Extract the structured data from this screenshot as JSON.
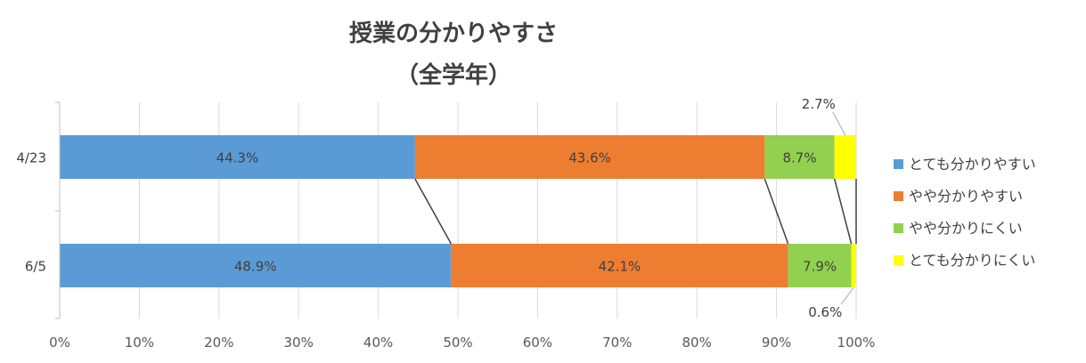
{
  "chart_data": {
    "type": "bar",
    "orientation": "horizontal",
    "stacked": "percent",
    "title": "授業の分かりやすさ",
    "subtitle": "（全学年）",
    "categories": [
      "4/23",
      "6/5"
    ],
    "series": [
      {
        "name": "とても分かりやすい",
        "color": "#5b9bd5",
        "values": [
          44.3,
          48.9
        ],
        "labels": [
          "44.3%",
          "48.9%"
        ]
      },
      {
        "name": "やや分かりやすい",
        "color": "#ed7d31",
        "values": [
          43.6,
          42.1
        ],
        "labels": [
          "43.6%",
          "42.1%"
        ]
      },
      {
        "name": "やや分かりにくい",
        "color": "#92d050",
        "values": [
          8.7,
          7.9
        ],
        "labels": [
          "8.7%",
          "7.9%"
        ]
      },
      {
        "name": "とても分かりにくい",
        "color": "#ffff00",
        "values": [
          2.7,
          0.6
        ],
        "labels": [
          "2.7%",
          "0.6%"
        ]
      }
    ],
    "x_ticks": [
      "0%",
      "10%",
      "20%",
      "30%",
      "40%",
      "50%",
      "60%",
      "70%",
      "80%",
      "90%",
      "100%"
    ],
    "xlim": [
      0,
      100
    ],
    "grid": true,
    "series_lines": true,
    "legend_position": "right"
  }
}
